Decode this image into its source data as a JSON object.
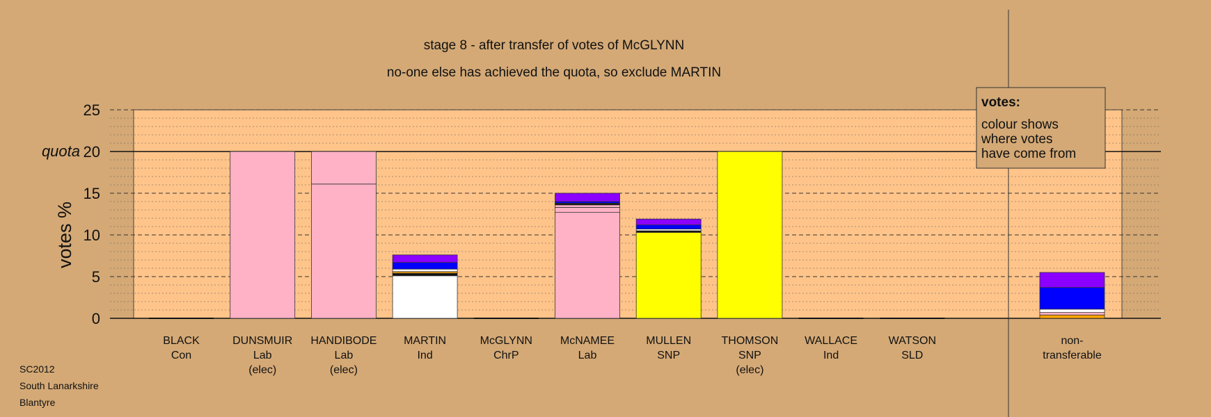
{
  "chart_data": {
    "type": "bar",
    "stacked": true,
    "title": "stage 8 - after transfer of votes of McGLYNN",
    "subtitle": "no-one else has achieved the quota, so exclude MARTIN",
    "ylabel": "votes %",
    "ylim": [
      0,
      25
    ],
    "yticks": [
      "0",
      "5",
      "10",
      "15",
      "20",
      "25"
    ],
    "quota_label": "quota",
    "quota": 20,
    "grid": true,
    "legend": {
      "title": "votes:",
      "lines": [
        "colour shows",
        "where votes",
        "have come from"
      ],
      "position": "top-right"
    },
    "footer": [
      "SC2012",
      "South Lanarkshire",
      "Blantyre"
    ],
    "colors": {
      "background": "#d4a976",
      "plot": "#ffc48a",
      "Lab": "#ffb1c6",
      "SNP": "#ffff00",
      "Ind": "#ffffff",
      "Con": "#0000ff",
      "SLD": "#ffa500",
      "ChrP": "#8b00ff",
      "other": "#111111"
    },
    "candidates": [
      {
        "lines": [
          "BLACK",
          "Con"
        ],
        "segments": []
      },
      {
        "lines": [
          "DUNSMUIR",
          "Lab",
          "(elec)"
        ],
        "segments": [
          {
            "source": "Lab",
            "color": "#ffb1c6",
            "value": 20.0
          }
        ]
      },
      {
        "lines": [
          "HANDIBODE",
          "Lab",
          "(elec)"
        ],
        "segments": [
          {
            "source": "Lab",
            "color": "#ffb1c6",
            "value": 16.1
          },
          {
            "source": "Lab",
            "color": "#ffb1c6",
            "value": 3.9
          }
        ]
      },
      {
        "lines": [
          "MARTIN",
          "Ind"
        ],
        "segments": [
          {
            "source": "Ind",
            "color": "#ffffff",
            "value": 5.1
          },
          {
            "source": "other",
            "color": "#111111",
            "value": 0.3
          },
          {
            "source": "SLD",
            "color": "#ffa500",
            "value": 0.2
          },
          {
            "source": "Ind",
            "color": "#ffffff",
            "value": 0.3
          },
          {
            "source": "Con",
            "color": "#0000ff",
            "value": 0.8
          },
          {
            "source": "ChrP",
            "color": "#8b00ff",
            "value": 0.9
          }
        ]
      },
      {
        "lines": [
          "McGLYNN",
          "ChrP"
        ],
        "segments": []
      },
      {
        "lines": [
          "McNAMEE",
          "Lab"
        ],
        "segments": [
          {
            "source": "Lab",
            "color": "#ffb1c6",
            "value": 12.7
          },
          {
            "source": "Lab",
            "color": "#ffb1c6",
            "value": 0.6
          },
          {
            "source": "Lab",
            "color": "#ffb1c6",
            "value": 0.3
          },
          {
            "source": "other",
            "color": "#111111",
            "value": 0.2
          },
          {
            "source": "Con",
            "color": "#0000ff",
            "value": 0.2
          },
          {
            "source": "ChrP",
            "color": "#8b00ff",
            "value": 1.0
          }
        ]
      },
      {
        "lines": [
          "MULLEN",
          "SNP"
        ],
        "segments": [
          {
            "source": "SNP",
            "color": "#ffff00",
            "value": 10.3
          },
          {
            "source": "other",
            "color": "#111111",
            "value": 0.2
          },
          {
            "source": "Ind",
            "color": "#ffffff",
            "value": 0.2
          },
          {
            "source": "Con",
            "color": "#0000ff",
            "value": 0.5
          },
          {
            "source": "ChrP",
            "color": "#8b00ff",
            "value": 0.7
          }
        ]
      },
      {
        "lines": [
          "THOMSON",
          "SNP",
          "(elec)"
        ],
        "segments": [
          {
            "source": "SNP",
            "color": "#ffff00",
            "value": 20.0
          }
        ]
      },
      {
        "lines": [
          "WALLACE",
          "Ind"
        ],
        "segments": []
      },
      {
        "lines": [
          "WATSON",
          "SLD"
        ],
        "segments": []
      }
    ],
    "nontransferable": {
      "lines": [
        "non-",
        "transferable"
      ],
      "segments": [
        {
          "source": "SLD",
          "color": "#ffa500",
          "value": 0.4
        },
        {
          "source": "Lab",
          "color": "#ffb1c6",
          "value": 0.3
        },
        {
          "source": "Ind",
          "color": "#ffffff",
          "value": 0.4
        },
        {
          "source": "Con",
          "color": "#0000ff",
          "value": 2.6
        },
        {
          "source": "ChrP",
          "color": "#8b00ff",
          "value": 1.8
        }
      ]
    }
  }
}
